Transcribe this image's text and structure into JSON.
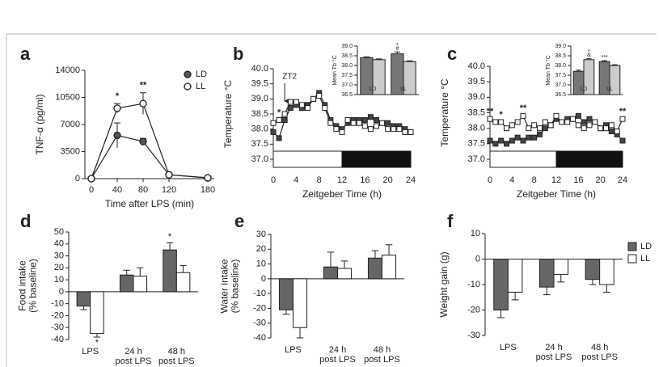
{
  "chart_data": [
    {
      "type": "line",
      "panel_label": "a",
      "y_label": [
        "TNF-α (pg/ml)"
      ],
      "x_label": "Time after LPS (min)",
      "x": [
        0,
        40,
        80,
        120,
        180
      ],
      "xlim": [
        -10,
        190
      ],
      "xticks": [
        0,
        40,
        80,
        120,
        180
      ],
      "ylim": [
        0,
        14000
      ],
      "yticks": [
        0,
        3500,
        7000,
        10500,
        14000
      ],
      "legend": "upper right",
      "series": [
        {
          "name": "LD",
          "color": "#555555",
          "marker": "circle",
          "values": [
            0,
            5600,
            4800,
            500,
            100
          ],
          "errors": [
            0,
            1600,
            400,
            200,
            100
          ]
        },
        {
          "name": "LL",
          "color": "#ffffff",
          "marker": "circle",
          "values": [
            0,
            9100,
            9700,
            500,
            100
          ],
          "errors": [
            0,
            600,
            1400,
            200,
            100
          ]
        }
      ],
      "annotations": [
        {
          "text": "*",
          "x": 40
        },
        {
          "text": "**",
          "x": 80
        }
      ]
    },
    {
      "type": "line",
      "panel_label": "b",
      "y_label": [
        "Temperature °C"
      ],
      "x_label": "Zeitgeber Time (h)",
      "x": [
        0,
        1,
        2,
        3,
        4,
        5,
        6,
        7,
        8,
        9,
        10,
        11,
        12,
        13,
        14,
        15,
        16,
        17,
        18,
        19,
        20,
        21,
        22,
        23,
        24
      ],
      "xlim": [
        0,
        24
      ],
      "xticks": [
        0,
        4,
        8,
        12,
        16,
        20,
        24
      ],
      "ylim": [
        37,
        40
      ],
      "yticks": [
        {
          "value": 37,
          "label": "37.0"
        },
        37.5,
        {
          "value": 38,
          "label": "38.0"
        },
        38.5,
        {
          "value": 39,
          "label": "39.0"
        },
        39.5,
        {
          "value": 40,
          "label": "40.0"
        }
      ],
      "light_phase": [
        0,
        12
      ],
      "dark_phase": [
        12,
        24
      ],
      "series": [
        {
          "color": "#444444",
          "marker": "square",
          "values": [
            37.9,
            37.7,
            38.3,
            38.7,
            38.8,
            38.7,
            38.8,
            39.0,
            39.2,
            38.8,
            38.3,
            38.1,
            38.0,
            38.2,
            38.3,
            38.3,
            38.3,
            38.4,
            38.3,
            38.2,
            38.2,
            38.1,
            38.1,
            38.0,
            37.9
          ]
        },
        {
          "color": "#ffffff",
          "marker": "square",
          "values": [
            38.2,
            38.3,
            38.5,
            38.9,
            38.9,
            38.8,
            38.7,
            39.0,
            39.1,
            38.7,
            38.2,
            38.0,
            37.9,
            38.3,
            38.2,
            38.2,
            38.1,
            38.0,
            38.1,
            38.2,
            38.0,
            38.0,
            38.0,
            37.9,
            37.9
          ]
        }
      ],
      "annotations": [
        {
          "text": "*",
          "x": 1
        }
      ],
      "pointer": {
        "text": "ZT2",
        "x": 2
      }
    },
    {
      "type": "bar",
      "y_label": [
        "Mean Tb °C"
      ],
      "categories": [
        [
          "LD"
        ],
        [
          "LL"
        ]
      ],
      "ylim": [
        36.5,
        39
      ],
      "yticks": [
        36.5,
        {
          "value": 37,
          "label": "37.0"
        },
        37.5,
        {
          "value": 38,
          "label": "38.0"
        },
        38.5,
        {
          "value": 39,
          "label": "39.0"
        }
      ],
      "series": [
        {
          "color": "#777777",
          "values": [
            38.4,
            38.6
          ],
          "errors": [
            0.05,
            0.1
          ]
        },
        {
          "color": "#cccccc",
          "values": [
            38.3,
            38.2
          ],
          "errors": [
            0.04,
            0.04
          ]
        }
      ],
      "annotations": [
        {
          "text": "#",
          "series": 0,
          "index": 1
        },
        {
          "text": "*",
          "series": 0,
          "index": 1
        }
      ]
    },
    {
      "type": "line",
      "panel_label": "c",
      "y_label": [
        "Temperature °C"
      ],
      "x_label": "Zeitgeber Time (h)",
      "x": [
        0,
        1,
        2,
        3,
        4,
        5,
        6,
        7,
        8,
        9,
        10,
        11,
        12,
        13,
        14,
        15,
        16,
        17,
        18,
        19,
        20,
        21,
        22,
        23,
        24
      ],
      "xlim": [
        0,
        24
      ],
      "xticks": [
        0,
        4,
        8,
        12,
        16,
        20,
        24
      ],
      "ylim": [
        37,
        40
      ],
      "yticks": [
        {
          "value": 37,
          "label": "37.0"
        },
        37.5,
        {
          "value": 38,
          "label": "38.0"
        },
        38.5,
        {
          "value": 39,
          "label": "39.0"
        },
        39.5,
        {
          "value": 40,
          "label": "40.0"
        }
      ],
      "light_phase": [
        0,
        12
      ],
      "dark_phase": [
        12,
        24
      ],
      "series": [
        {
          "color": "#444444",
          "marker": "square",
          "values": [
            37.6,
            37.5,
            37.6,
            37.5,
            37.6,
            37.7,
            37.6,
            37.7,
            37.7,
            37.8,
            38.0,
            38.1,
            38.3,
            38.2,
            38.3,
            38.3,
            38.4,
            38.2,
            38.3,
            38.2,
            38.0,
            38.1,
            37.9,
            37.8,
            37.6
          ]
        },
        {
          "color": "#ffffff",
          "marker": "square",
          "values": [
            38.3,
            38.2,
            38.2,
            38.0,
            38.1,
            38.2,
            38.4,
            38.0,
            38.1,
            38.0,
            38.2,
            38.1,
            38.4,
            38.2,
            38.2,
            38.3,
            38.1,
            38.0,
            38.1,
            38.2,
            38.0,
            38.0,
            38.1,
            37.9,
            38.3
          ]
        }
      ],
      "annotations": [
        {
          "text": "**",
          "x": 0
        },
        {
          "text": "*",
          "x": 2
        },
        {
          "text": "**",
          "x": 6
        },
        {
          "text": "**",
          "x": 24
        }
      ]
    },
    {
      "type": "bar",
      "y_label": [
        "Mean Tb °C"
      ],
      "categories": [
        [
          "LD"
        ],
        [
          "LL"
        ]
      ],
      "ylim": [
        36.5,
        39
      ],
      "yticks": [
        36.5,
        {
          "value": 37,
          "label": "37.0"
        },
        37.5,
        {
          "value": 38,
          "label": "38.0"
        },
        38.5,
        {
          "value": 39,
          "label": "39.0"
        }
      ],
      "series": [
        {
          "color": "#777777",
          "values": [
            37.7,
            38.2
          ],
          "errors": [
            0.06,
            0.05
          ]
        },
        {
          "color": "#cccccc",
          "values": [
            38.3,
            38.0
          ],
          "errors": [
            0.06,
            0.04
          ]
        }
      ],
      "annotations": [
        {
          "text": "&",
          "series": 1,
          "index": 0
        },
        {
          "text": "*",
          "series": 1,
          "index": 0
        },
        {
          "text": "***",
          "series": 0,
          "index": 1
        }
      ]
    },
    {
      "type": "bar",
      "panel_label": "d",
      "y_label": [
        "Food intake",
        "(% baseline)"
      ],
      "categories": [
        [
          "LPS"
        ],
        [
          "24 h",
          "post LPS"
        ],
        [
          "48 h",
          "post LPS"
        ]
      ],
      "ylim": [
        -40,
        50
      ],
      "yticks": [
        -40,
        -30,
        -20,
        -10,
        0,
        10,
        20,
        30,
        40,
        50
      ],
      "series": [
        {
          "name": "LD",
          "color": "#666666",
          "values": [
            -12,
            14,
            35
          ],
          "errors": [
            3,
            4,
            6
          ]
        },
        {
          "name": "LL",
          "color": "#ffffff",
          "values": [
            -35,
            13,
            16
          ],
          "errors": [
            3,
            7,
            6
          ]
        }
      ],
      "annotations": [
        {
          "text": "*",
          "series": 1,
          "index": 0
        },
        {
          "text": "*",
          "series": 0,
          "index": 2
        }
      ]
    },
    {
      "type": "bar",
      "panel_label": "e",
      "y_label": [
        "Water intake",
        "(% baseline)"
      ],
      "categories": [
        [
          "LPS"
        ],
        [
          "24 h",
          "post LPS"
        ],
        [
          "48 h",
          "post LPS"
        ]
      ],
      "ylim": [
        -40,
        30
      ],
      "yticks": [
        -40,
        -30,
        -20,
        -10,
        0,
        10,
        20,
        30
      ],
      "series": [
        {
          "name": "LD",
          "color": "#666666",
          "values": [
            -21,
            8,
            14
          ],
          "errors": [
            3,
            10,
            5
          ]
        },
        {
          "name": "LL",
          "color": "#ffffff",
          "values": [
            -33,
            7,
            16
          ],
          "errors": [
            7,
            5,
            7
          ]
        }
      ]
    },
    {
      "type": "bar",
      "panel_label": "f",
      "y_label": [
        "Weight gain (g)"
      ],
      "legend": "right",
      "categories": [
        [
          "LPS"
        ],
        [
          "24 h",
          "post LPS"
        ],
        [
          "48 h",
          "post LPS"
        ]
      ],
      "ylim": [
        -30,
        10
      ],
      "yticks": [
        -30,
        -20,
        -10,
        0,
        10
      ],
      "series": [
        {
          "name": "LD",
          "color": "#666666",
          "values": [
            -20,
            -11,
            -8
          ],
          "errors": [
            3,
            3,
            2
          ]
        },
        {
          "name": "LL",
          "color": "#ffffff",
          "values": [
            -13,
            -6,
            -10
          ],
          "errors": [
            3,
            3,
            3
          ]
        }
      ]
    }
  ]
}
